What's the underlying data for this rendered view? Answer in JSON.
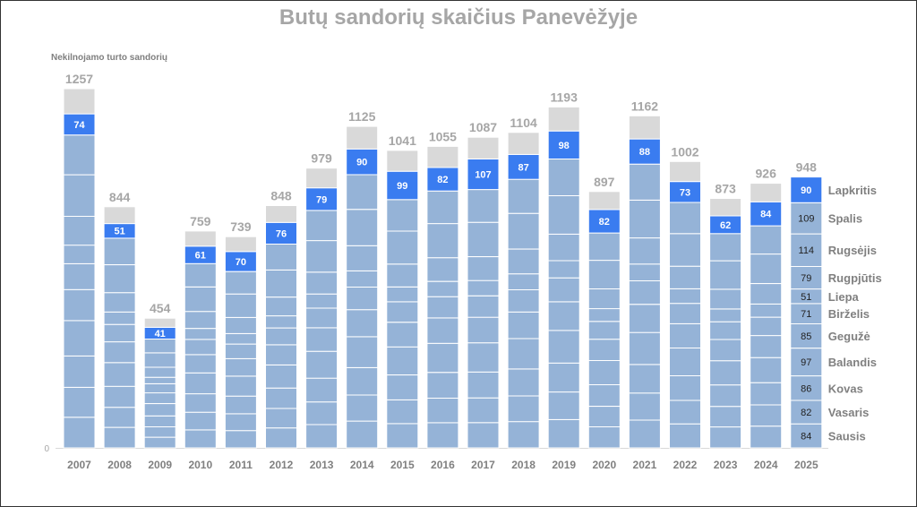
{
  "title": "Butų sandorių skaičius Panevėžyje",
  "ylabel": "Nekilnojamo turto sandorių",
  "zero_label": "0",
  "chart_data": {
    "type": "bar",
    "stacked": true,
    "title": "Butų sandorių skaičius Panevėžyje",
    "ylabel": "Nekilnojamo turto sandorių",
    "ylim": [
      0,
      1257
    ],
    "categories": [
      "2007",
      "2008",
      "2009",
      "2010",
      "2011",
      "2012",
      "2013",
      "2014",
      "2015",
      "2016",
      "2017",
      "2018",
      "2019",
      "2020",
      "2021",
      "2022",
      "2023",
      "2024",
      "2025"
    ],
    "totals": [
      1257,
      844,
      454,
      759,
      739,
      848,
      979,
      1125,
      1041,
      1055,
      1087,
      1104,
      1193,
      897,
      1162,
      1002,
      873,
      926,
      948
    ],
    "november": [
      74,
      51,
      41,
      61,
      70,
      76,
      79,
      90,
      99,
      82,
      107,
      87,
      98,
      82,
      88,
      73,
      62,
      84,
      90
    ],
    "months_2025": [
      {
        "name": "Sausis",
        "value": 84
      },
      {
        "name": "Vasaris",
        "value": 82
      },
      {
        "name": "Kovas",
        "value": 86
      },
      {
        "name": "Balandis",
        "value": 97
      },
      {
        "name": "Gegužė",
        "value": 85
      },
      {
        "name": "Birželis",
        "value": 71
      },
      {
        "name": "Liepa",
        "value": 51
      },
      {
        "name": "Rugpjūtis",
        "value": 79
      },
      {
        "name": "Rugsėjis",
        "value": 114
      },
      {
        "name": "Spalis",
        "value": 109
      },
      {
        "name": "Lapkritis",
        "value": 90
      }
    ],
    "colors": {
      "months": "#95b3d7",
      "november": "#3a7cf0",
      "december": "#d9d9d9",
      "separator": "#ffffff"
    },
    "grid": false
  }
}
